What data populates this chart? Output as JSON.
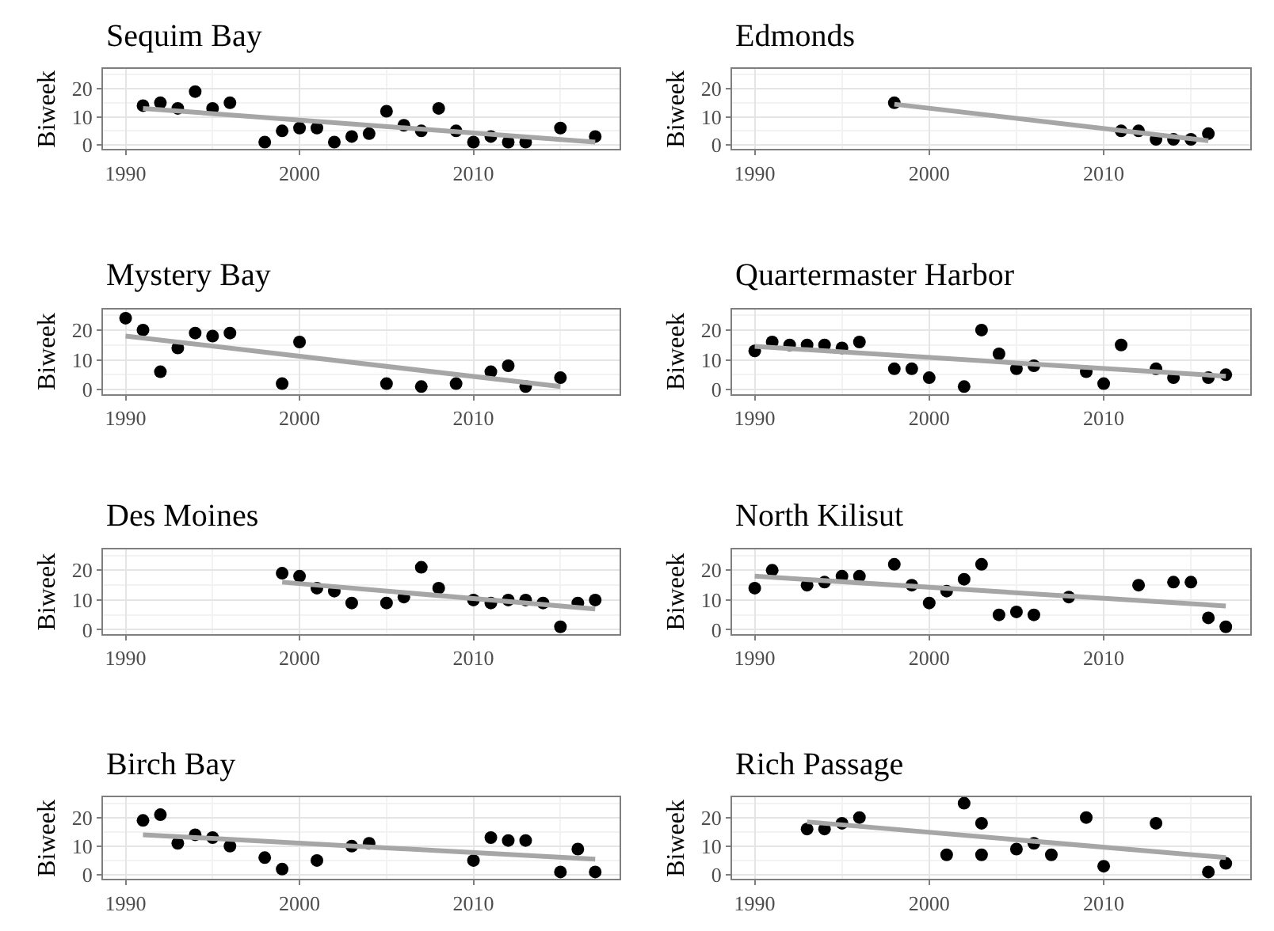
{
  "chart_data": [
    {
      "type": "scatter",
      "title": "Sequim Bay",
      "ylabel": "Biweek",
      "xlim": [
        1988.7,
        2018.4
      ],
      "ylim": [
        -1.5,
        27
      ],
      "xticks": [
        1990,
        2000,
        2010
      ],
      "yticks": [
        0,
        10,
        20
      ],
      "grid": true,
      "series": [
        {
          "marker": "circle",
          "color": "#000000",
          "x": [
            1991,
            1992,
            1993,
            1994,
            1995,
            1996,
            1998,
            1999,
            2000,
            2001,
            2002,
            2003,
            2004,
            2005,
            2006,
            2007,
            2008,
            2009,
            2010,
            2011,
            2012,
            2013,
            2015,
            2017
          ],
          "values": [
            14,
            15,
            13,
            19,
            13,
            15,
            1,
            5,
            6,
            6,
            1,
            3,
            4,
            12,
            7,
            5,
            13,
            5,
            1,
            3,
            1,
            1,
            6,
            3
          ]
        },
        {
          "type": "line",
          "color": "#a6a6a6",
          "x": [
            1991,
            2017
          ],
          "values": [
            13,
            1
          ]
        }
      ]
    },
    {
      "type": "scatter",
      "title": "Edmonds",
      "ylabel": "Biweek",
      "xlim": [
        1988.7,
        2018.4
      ],
      "ylim": [
        -1.5,
        27
      ],
      "xticks": [
        1990,
        2000,
        2010
      ],
      "yticks": [
        0,
        10,
        20
      ],
      "grid": true,
      "series": [
        {
          "marker": "circle",
          "color": "#000000",
          "x": [
            1998,
            2011,
            2012,
            2013,
            2014,
            2015,
            2016
          ],
          "values": [
            15,
            5,
            5,
            2,
            2,
            2,
            4
          ]
        },
        {
          "type": "line",
          "color": "#a6a6a6",
          "x": [
            1998,
            2016
          ],
          "values": [
            14.5,
            1.5
          ]
        }
      ]
    },
    {
      "type": "scatter",
      "title": "Mystery Bay",
      "ylabel": "Biweek",
      "xlim": [
        1988.7,
        2018.4
      ],
      "ylim": [
        -1.5,
        27
      ],
      "xticks": [
        1990,
        2000,
        2010
      ],
      "yticks": [
        0,
        10,
        20
      ],
      "grid": true,
      "series": [
        {
          "marker": "circle",
          "color": "#000000",
          "x": [
            1990,
            1991,
            1992,
            1993,
            1994,
            1995,
            1996,
            1999,
            2000,
            2005,
            2007,
            2009,
            2011,
            2012,
            2013,
            2015
          ],
          "values": [
            24,
            20,
            6,
            14,
            19,
            18,
            19,
            2,
            16,
            2,
            1,
            2,
            6,
            8,
            1,
            4
          ]
        },
        {
          "type": "line",
          "color": "#a6a6a6",
          "x": [
            1990,
            2015
          ],
          "values": [
            18,
            1
          ]
        }
      ]
    },
    {
      "type": "scatter",
      "title": "Quartermaster Harbor",
      "ylabel": "Biweek",
      "xlim": [
        1988.7,
        2018.4
      ],
      "ylim": [
        -1.5,
        27
      ],
      "xticks": [
        1990,
        2000,
        2010
      ],
      "yticks": [
        0,
        10,
        20
      ],
      "grid": true,
      "series": [
        {
          "marker": "circle",
          "color": "#000000",
          "x": [
            1990,
            1991,
            1992,
            1993,
            1994,
            1995,
            1996,
            1998,
            1999,
            2000,
            2002,
            2003,
            2004,
            2005,
            2006,
            2009,
            2010,
            2011,
            2013,
            2014,
            2016,
            2017
          ],
          "values": [
            13,
            16,
            15,
            15,
            15,
            14,
            16,
            7,
            7,
            4,
            1,
            20,
            12,
            7,
            8,
            6,
            2,
            15,
            7,
            4,
            4,
            5
          ]
        },
        {
          "type": "line",
          "color": "#a6a6a6",
          "x": [
            1990,
            2017
          ],
          "values": [
            14.5,
            4.5
          ]
        }
      ]
    },
    {
      "type": "scatter",
      "title": "Des Moines",
      "ylabel": "Biweek",
      "xlim": [
        1988.7,
        2018.4
      ],
      "ylim": [
        -1.5,
        27
      ],
      "xticks": [
        1990,
        2000,
        2010
      ],
      "yticks": [
        0,
        10,
        20
      ],
      "grid": true,
      "series": [
        {
          "marker": "circle",
          "color": "#000000",
          "x": [
            1999,
            2000,
            2001,
            2002,
            2003,
            2005,
            2006,
            2007,
            2008,
            2010,
            2011,
            2012,
            2013,
            2014,
            2015,
            2016,
            2017
          ],
          "values": [
            19,
            18,
            14,
            13,
            9,
            9,
            11,
            21,
            14,
            10,
            9,
            10,
            10,
            9,
            1,
            9,
            10
          ]
        },
        {
          "type": "line",
          "color": "#a6a6a6",
          "x": [
            1999,
            2017
          ],
          "values": [
            16,
            7
          ]
        }
      ]
    },
    {
      "type": "scatter",
      "title": "North Kilisut",
      "ylabel": "Biweek",
      "xlim": [
        1988.7,
        2018.4
      ],
      "ylim": [
        -1.5,
        27
      ],
      "xticks": [
        1990,
        2000,
        2010
      ],
      "yticks": [
        0,
        10,
        20
      ],
      "grid": true,
      "series": [
        {
          "marker": "circle",
          "color": "#000000",
          "x": [
            1990,
            1991,
            1993,
            1994,
            1995,
            1996,
            1998,
            1999,
            2000,
            2001,
            2002,
            2003,
            2004,
            2005,
            2006,
            2008,
            2012,
            2014,
            2015,
            2016,
            2017
          ],
          "values": [
            14,
            20,
            15,
            16,
            18,
            18,
            22,
            15,
            9,
            13,
            17,
            22,
            5,
            6,
            5,
            11,
            15,
            16,
            16,
            4,
            1
          ]
        },
        {
          "type": "line",
          "color": "#a6a6a6",
          "x": [
            1990,
            2017
          ],
          "values": [
            18,
            8
          ]
        }
      ]
    },
    {
      "type": "scatter",
      "title": "Birch Bay",
      "ylabel": "Biweek",
      "xlim": [
        1988.7,
        2018.4
      ],
      "ylim": [
        -1.5,
        27
      ],
      "xticks": [
        1990,
        2000,
        2010
      ],
      "yticks": [
        0,
        10,
        20
      ],
      "grid": true,
      "series": [
        {
          "marker": "circle",
          "color": "#000000",
          "x": [
            1991,
            1992,
            1993,
            1994,
            1995,
            1996,
            1998,
            1999,
            2001,
            2003,
            2004,
            2010,
            2011,
            2012,
            2013,
            2015,
            2016,
            2017
          ],
          "values": [
            19,
            21,
            11,
            14,
            13,
            10,
            6,
            2,
            5,
            10,
            11,
            5,
            13,
            12,
            12,
            1,
            9,
            1
          ]
        },
        {
          "type": "line",
          "color": "#a6a6a6",
          "x": [
            1991,
            2017
          ],
          "values": [
            14,
            5.5
          ]
        }
      ]
    },
    {
      "type": "scatter",
      "title": "Rich Passage",
      "ylabel": "Biweek",
      "xlim": [
        1988.7,
        2018.4
      ],
      "ylim": [
        -1.5,
        27
      ],
      "xticks": [
        1990,
        2000,
        2010
      ],
      "yticks": [
        0,
        10,
        20
      ],
      "grid": true,
      "series": [
        {
          "marker": "circle",
          "color": "#000000",
          "x": [
            1993,
            1994,
            1995,
            1996,
            2001,
            2002,
            2003,
            2003,
            2005,
            2006,
            2007,
            2009,
            2010,
            2013,
            2016,
            2017
          ],
          "values": [
            16,
            16,
            18,
            20,
            7,
            25,
            18,
            7,
            9,
            11,
            7,
            20,
            3,
            18,
            1,
            4
          ]
        },
        {
          "type": "line",
          "color": "#a6a6a6",
          "x": [
            1993,
            2017
          ],
          "values": [
            18.5,
            6
          ]
        }
      ]
    }
  ]
}
